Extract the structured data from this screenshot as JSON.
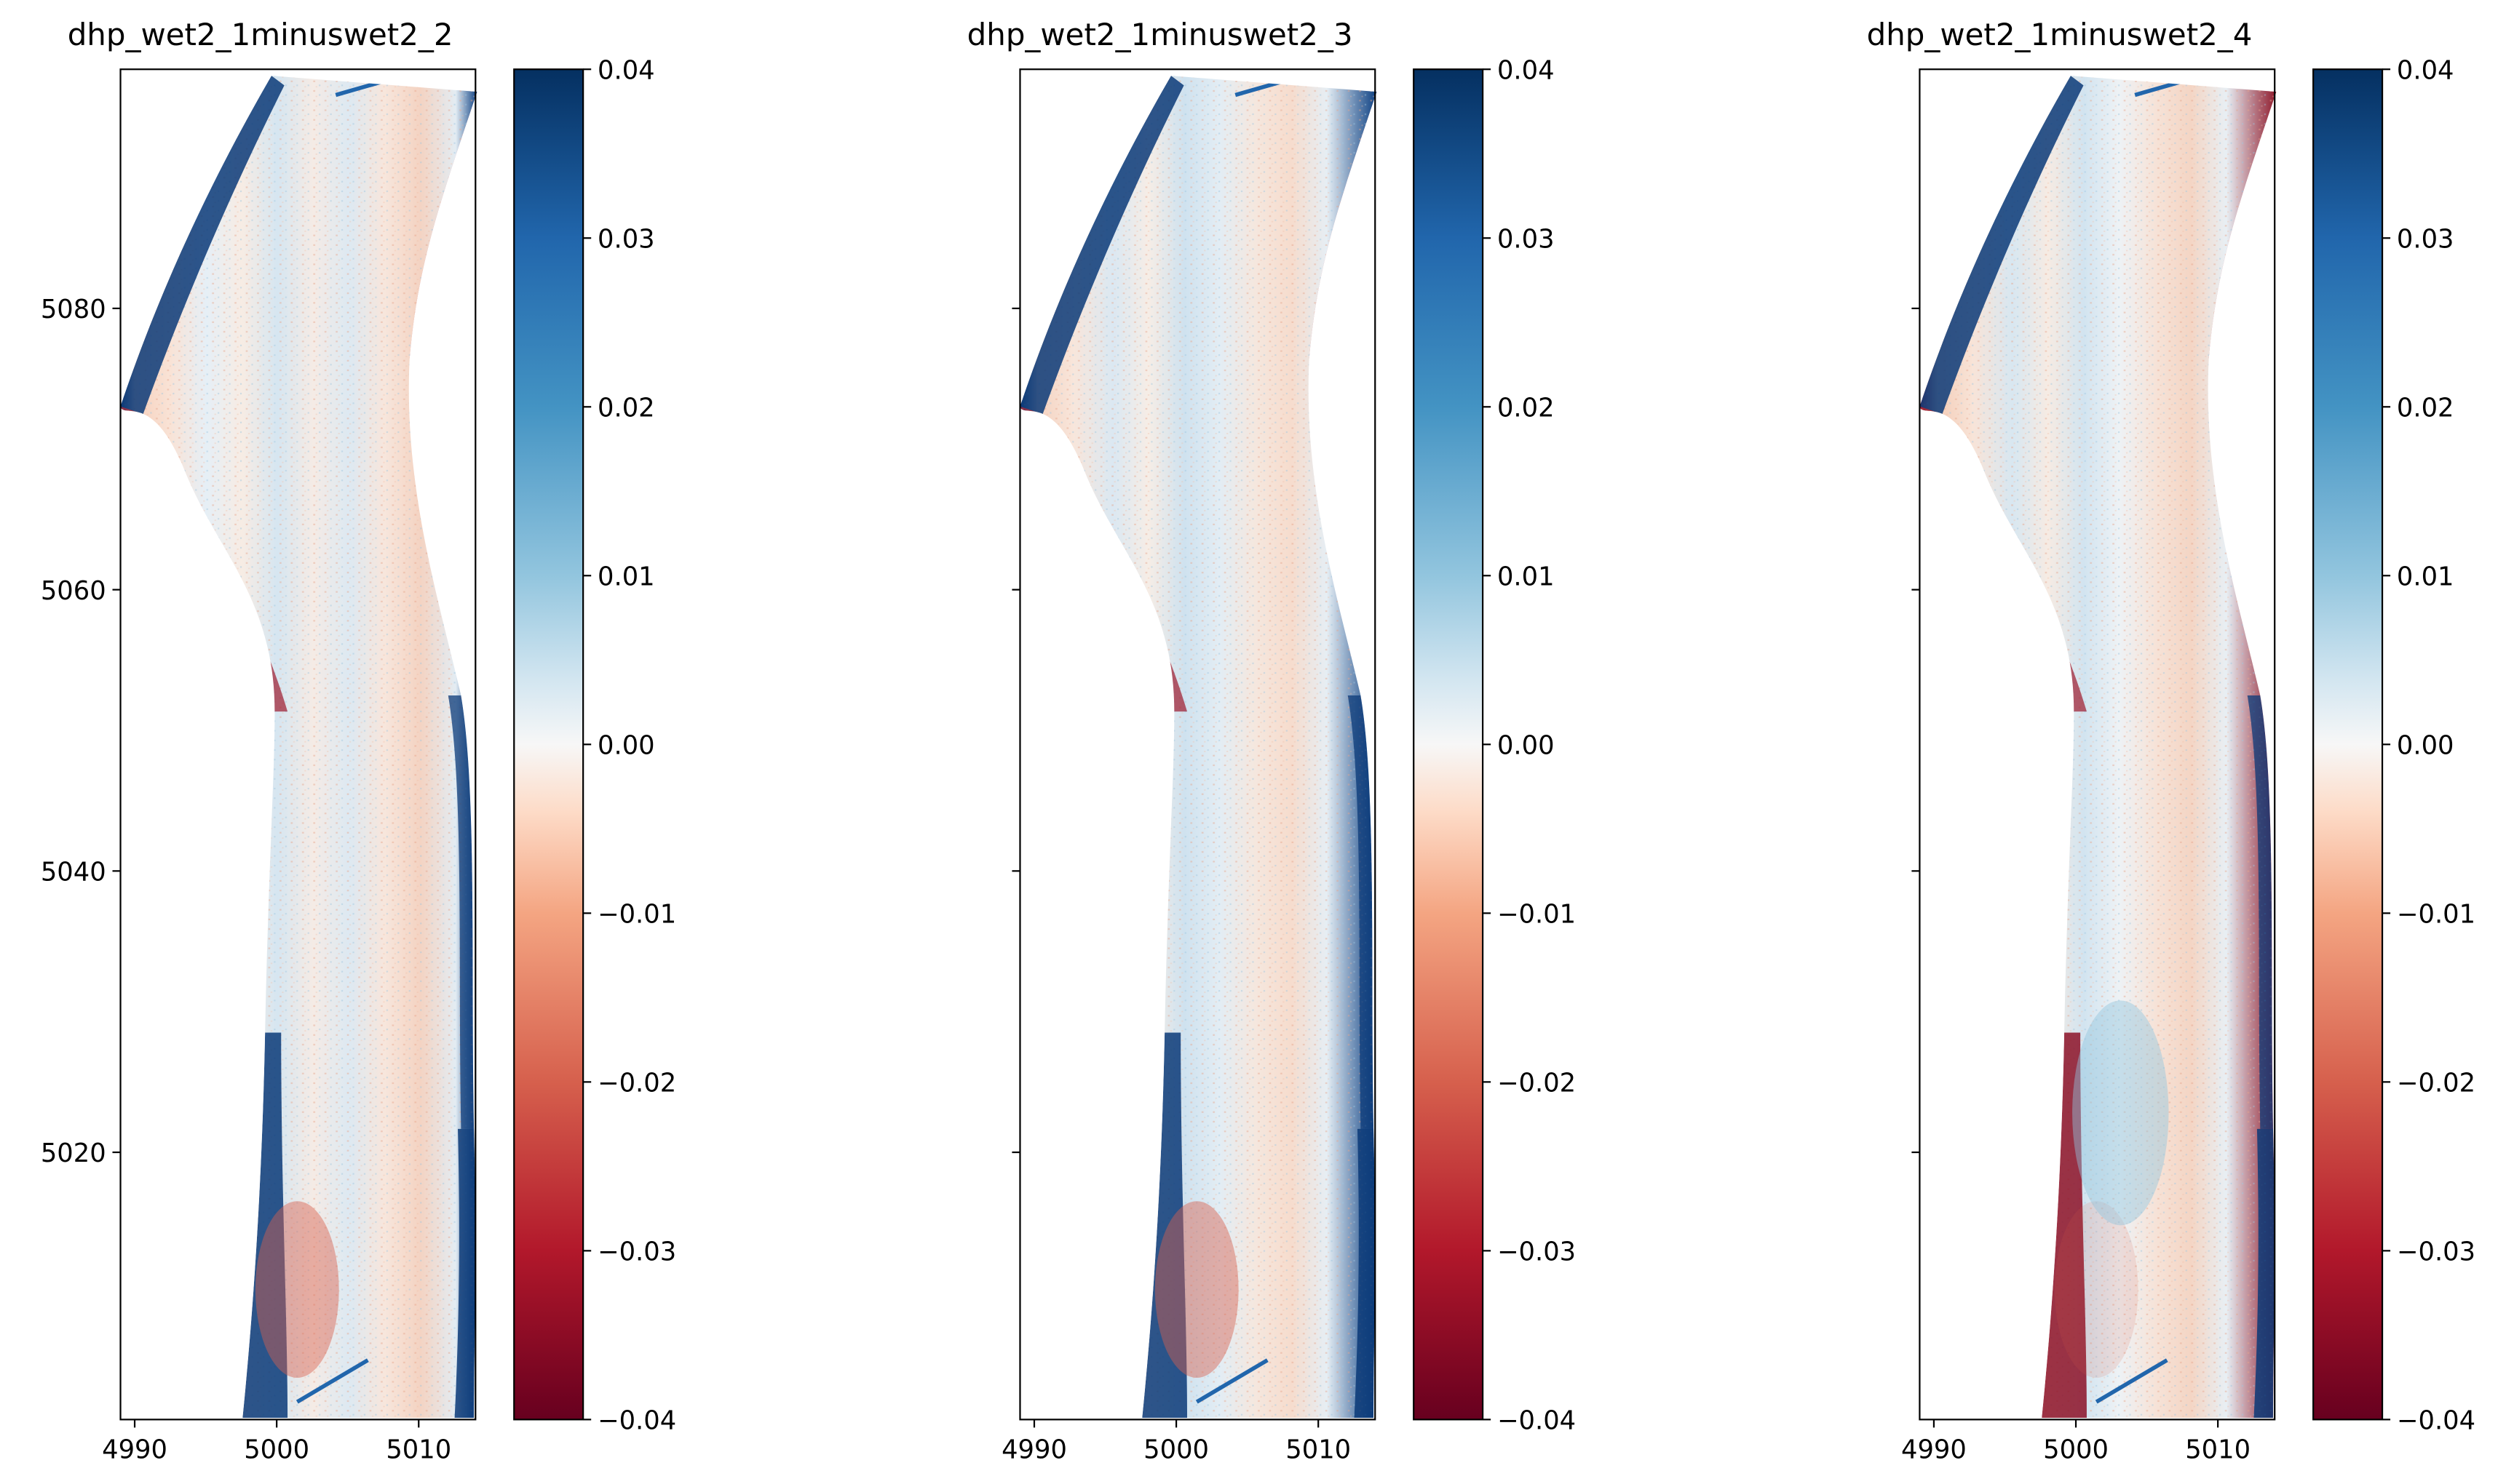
{
  "figure": {
    "panels": [
      {
        "title": "dhp_wet2_1minuswet2_2",
        "variant": "a"
      },
      {
        "title": "dhp_wet2_1minuswet2_3",
        "variant": "b"
      },
      {
        "title": "dhp_wet2_1minuswet2_4",
        "variant": "c"
      }
    ],
    "colormap": "RdBu (reversed-sign diverging: red negative, blue positive)",
    "colors": {
      "deep_red": "#67001f",
      "red": "#d6604d",
      "light_red": "#f4a582",
      "white": "#f7f7f7",
      "light_blue": "#92c5de",
      "blue": "#4393c3",
      "deep_blue": "#053061"
    }
  },
  "chart_data": [
    {
      "type": "heatmap",
      "title": "dhp_wet2_1minuswet2_2",
      "xlabel": "",
      "ylabel": "",
      "xlim": [
        4989,
        5014
      ],
      "ylim": [
        5001,
        5097
      ],
      "xticks": [
        "4990",
        "5000",
        "5010"
      ],
      "yticks": [
        "5020",
        "5040",
        "5060",
        "5080"
      ],
      "colorbar": {
        "range": [
          -0.04,
          0.04
        ],
        "ticks": [
          "0.04",
          "0.03",
          "0.02",
          "0.01",
          "0.00",
          "−0.01",
          "−0.02",
          "−0.03",
          "−0.04"
        ]
      },
      "description": "elevation difference raster over a curved channel strip; mostly near zero with red (negative) bank edges and blue (positive) outer edges"
    },
    {
      "type": "heatmap",
      "title": "dhp_wet2_1minuswet2_3",
      "xlabel": "",
      "ylabel": "",
      "xlim": [
        4989,
        5014
      ],
      "ylim": [
        5001,
        5097
      ],
      "xticks": [
        "4990",
        "5000",
        "5010"
      ],
      "yticks": [],
      "colorbar": {
        "range": [
          -0.04,
          0.04
        ],
        "ticks": [
          "0.04",
          "0.03",
          "0.02",
          "0.01",
          "0.00",
          "−0.01",
          "−0.02",
          "−0.03",
          "−0.04"
        ]
      }
    },
    {
      "type": "heatmap",
      "title": "dhp_wet2_1minuswet2_4",
      "xlabel": "",
      "ylabel": "",
      "xlim": [
        4989,
        5014
      ],
      "ylim": [
        5001,
        5097
      ],
      "xticks": [
        "4990",
        "5000",
        "5010"
      ],
      "yticks": [],
      "colorbar": {
        "range": [
          -0.04,
          0.04
        ],
        "ticks": [
          "0.04",
          "0.03",
          "0.02",
          "0.01",
          "0.00",
          "−0.01",
          "−0.02",
          "−0.03",
          "−0.04"
        ]
      }
    }
  ]
}
